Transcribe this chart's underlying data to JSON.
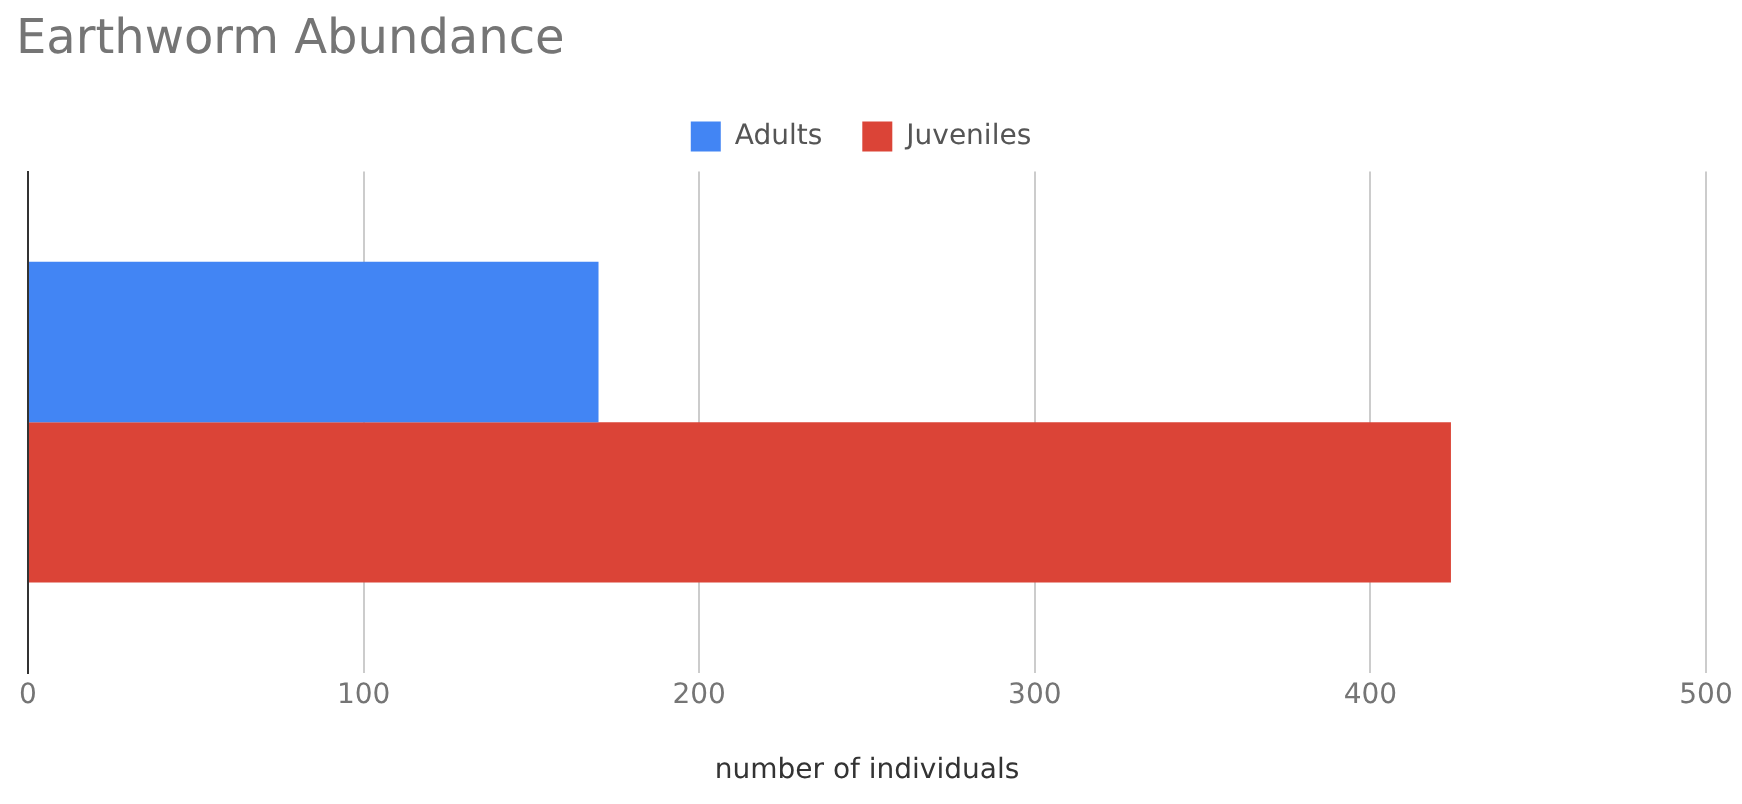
{
  "chart_data": {
    "type": "bar",
    "orientation": "horizontal",
    "title": "Earthworm Abundance",
    "xlabel": "number of individuals",
    "categories": [
      null
    ],
    "series": [
      {
        "name": "Adults",
        "color": "#4285f4",
        "values": [
          170
        ]
      },
      {
        "name": "Juveniles",
        "color": "#db4437",
        "values": [
          424
        ]
      }
    ],
    "xlim": [
      0,
      500
    ],
    "xticks": [
      0,
      100,
      200,
      300,
      400,
      500
    ],
    "grid": "x",
    "legend": "top"
  }
}
